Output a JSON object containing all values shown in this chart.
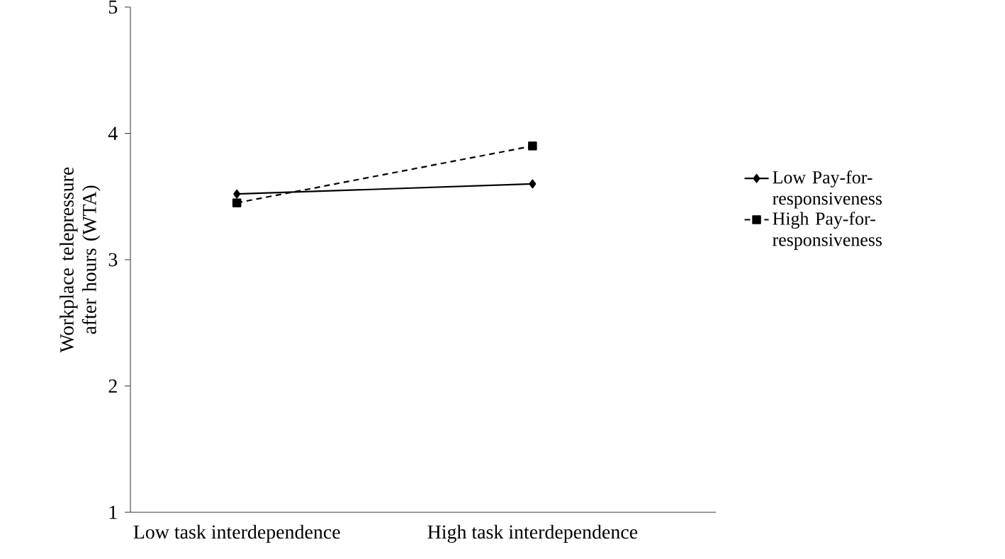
{
  "chart_data": {
    "type": "line",
    "ylabel": "Workplace telepressure after hours (WTA)",
    "categories": [
      "Low task interdependence",
      "High task interdependence"
    ],
    "series": [
      {
        "name": "Low Pay-for-responsiveness",
        "color": "#000000",
        "values": [
          3.52,
          3.6
        ],
        "marker": "diamond",
        "line_style": "solid"
      },
      {
        "name": "High Pay-for-responsiveness",
        "color": "#000000",
        "values": [
          3.45,
          3.9
        ],
        "marker": "square",
        "line_style": "dashed"
      }
    ],
    "ylim": [
      1,
      5
    ],
    "yticks": [
      1,
      2,
      3,
      4,
      5
    ],
    "legend": "right",
    "grid": false
  }
}
